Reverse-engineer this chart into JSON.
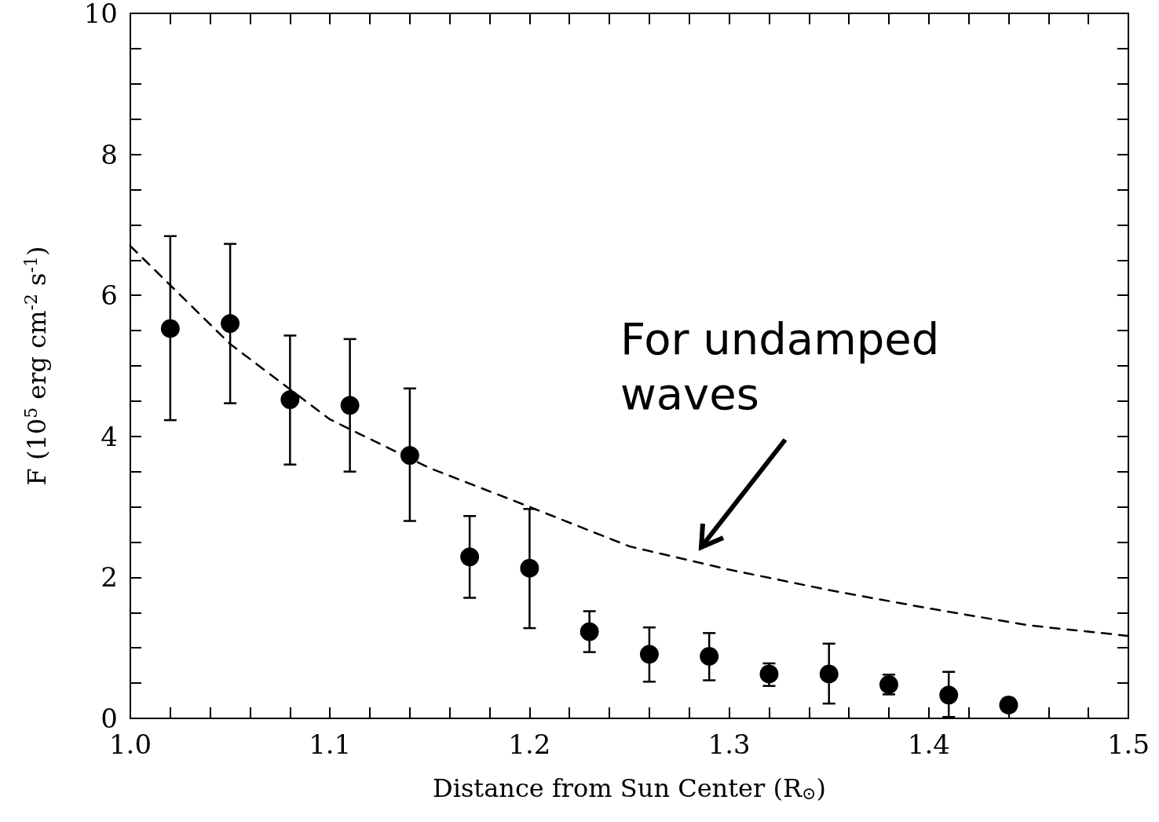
{
  "chart_data": {
    "type": "scatter",
    "xlabel": "Distance from Sun Center (R$_{⊙}$)",
    "ylabel": "F (10$^{5}$ erg cm$^{-2}$ s$^{-1}$)",
    "xlim": [
      1.0,
      1.5
    ],
    "ylim": [
      0,
      10
    ],
    "xticks": [
      {
        "value": 1.0,
        "label": "1.0"
      },
      {
        "value": 1.02,
        "label": null
      },
      {
        "value": 1.04,
        "label": null
      },
      {
        "value": 1.06,
        "label": null
      },
      {
        "value": 1.08,
        "label": null
      },
      {
        "value": 1.1,
        "label": "1.1"
      },
      {
        "value": 1.12,
        "label": null
      },
      {
        "value": 1.14,
        "label": null
      },
      {
        "value": 1.16,
        "label": null
      },
      {
        "value": 1.18,
        "label": null
      },
      {
        "value": 1.2,
        "label": "1.2"
      },
      {
        "value": 1.22,
        "label": null
      },
      {
        "value": 1.24,
        "label": null
      },
      {
        "value": 1.26,
        "label": null
      },
      {
        "value": 1.28,
        "label": null
      },
      {
        "value": 1.3,
        "label": "1.3"
      },
      {
        "value": 1.32,
        "label": null
      },
      {
        "value": 1.34,
        "label": null
      },
      {
        "value": 1.36,
        "label": null
      },
      {
        "value": 1.38,
        "label": null
      },
      {
        "value": 1.4,
        "label": "1.4"
      },
      {
        "value": 1.42,
        "label": null
      },
      {
        "value": 1.44,
        "label": null
      },
      {
        "value": 1.46,
        "label": null
      },
      {
        "value": 1.48,
        "label": null
      },
      {
        "value": 1.5,
        "label": "1.5"
      }
    ],
    "yticks": [
      0,
      {
        "value": 0.5,
        "label": null
      },
      {
        "value": 1,
        "label": null
      },
      {
        "value": 1.5,
        "label": null
      },
      2,
      {
        "value": 2.5,
        "label": null
      },
      {
        "value": 3,
        "label": null
      },
      {
        "value": 3.5,
        "label": null
      },
      4,
      {
        "value": 4.5,
        "label": null
      },
      {
        "value": 5,
        "label": null
      },
      {
        "value": 5.5,
        "label": null
      },
      6,
      {
        "value": 6.5,
        "label": null
      },
      {
        "value": 7,
        "label": null
      },
      {
        "value": 7.5,
        "label": null
      },
      8,
      {
        "value": 8.5,
        "label": null
      },
      {
        "value": 9,
        "label": null
      },
      {
        "value": 9.5,
        "label": null
      },
      10
    ],
    "grid": false,
    "annotations": [
      "For undamped\nwaves"
    ],
    "series": [
      {
        "color": "#000000",
        "marker": "circle",
        "x": [
          1.02,
          1.05,
          1.08,
          1.11,
          1.14,
          1.17,
          1.2,
          1.23,
          1.26,
          1.29,
          1.32,
          1.35,
          1.38,
          1.41,
          1.44
        ],
        "values": [
          5.53,
          5.6,
          4.52,
          4.44,
          3.73,
          2.29,
          2.13,
          1.23,
          0.91,
          0.88,
          0.63,
          0.63,
          0.48,
          0.33,
          0.19
        ],
        "errors": [
          [
            4.23,
            6.84
          ],
          [
            4.47,
            6.73
          ],
          [
            3.6,
            5.43
          ],
          [
            3.5,
            5.38
          ],
          [
            2.8,
            4.68
          ],
          [
            1.71,
            2.87
          ],
          [
            1.28,
            2.97
          ],
          [
            0.94,
            1.52
          ],
          [
            0.52,
            1.29
          ],
          [
            0.54,
            1.21
          ],
          [
            0.46,
            0.78
          ],
          [
            0.21,
            1.06
          ],
          [
            0.34,
            0.62
          ],
          [
            0.02,
            0.66
          ],
          [
            0.1,
            0.28
          ]
        ]
      },
      {
        "type": "line",
        "color": "#000000",
        "marker": "none",
        "line_style": "dashed",
        "x": [
          1.0,
          1.05,
          1.1,
          1.15,
          1.2,
          1.25,
          1.3,
          1.35,
          1.4,
          1.45,
          1.5
        ],
        "values": [
          6.7,
          5.31,
          4.24,
          3.55,
          3.0,
          2.44,
          2.11,
          1.82,
          1.56,
          1.32,
          1.17
        ]
      }
    ]
  }
}
